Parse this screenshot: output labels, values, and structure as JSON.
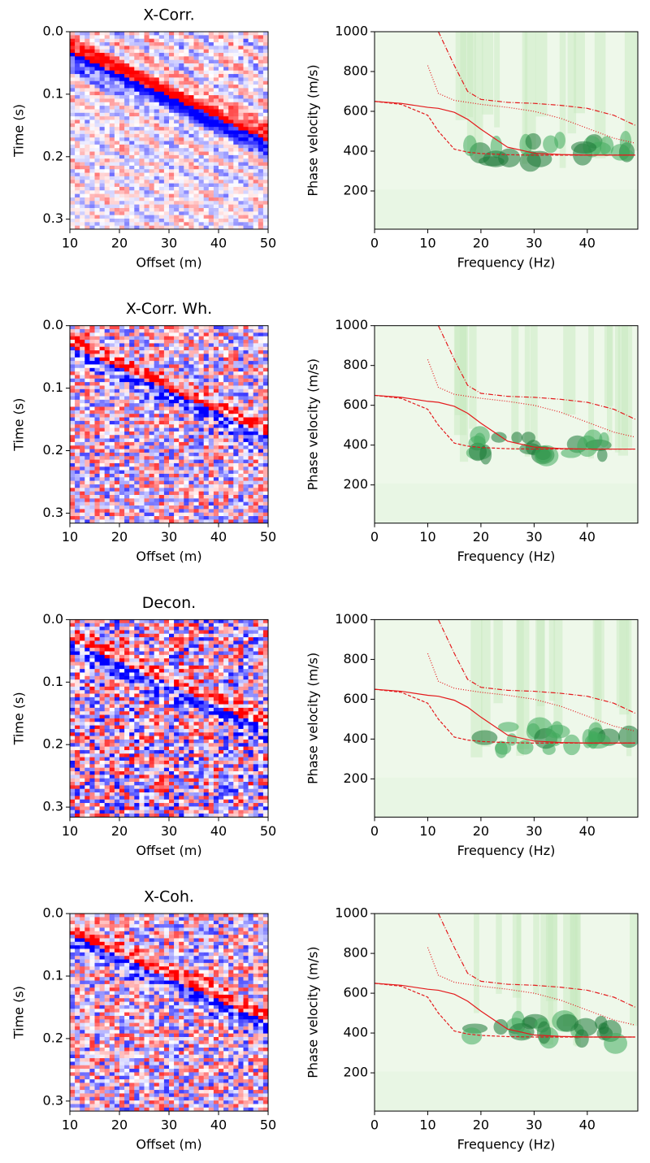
{
  "chart_data": [
    {
      "type": "heatmap",
      "title": "X-Corr.",
      "xlabel": "Offset (m)",
      "ylabel": "Time (s)",
      "xlim": [
        10,
        50
      ],
      "xticks": [
        10,
        20,
        30,
        40,
        50
      ],
      "ylim": [
        0,
        0.316
      ],
      "yticks": [
        {
          "value": 0,
          "label": "0.0"
        },
        0.1,
        0.2,
        0.3
      ],
      "y_inverted": true,
      "colormap": "bwr"
    },
    {
      "type": "line",
      "xlabel": "Frequency (Hz)",
      "ylabel": "Phase velocity (m/s)",
      "xlim": [
        0,
        49.5
      ],
      "xticks": [
        0,
        10,
        20,
        30,
        40
      ],
      "ylim": [
        8,
        1000
      ],
      "yticks": [
        200,
        400,
        600,
        800,
        1000
      ],
      "colormap": "Greens",
      "x": [
        0,
        5,
        10,
        12,
        15,
        17.5,
        20,
        25,
        30,
        35,
        40,
        45,
        49
      ],
      "series": [
        {
          "color": "#e41a1c",
          "style": "solid",
          "values": [
            650,
            640,
            620,
            615,
            595,
            560,
            510,
            420,
            390,
            383,
            380,
            380,
            380
          ]
        },
        {
          "color": "#e41a1c",
          "style": "dashed",
          "values": [
            650,
            635,
            580,
            500,
            410,
            395,
            388,
            382,
            380,
            380,
            380,
            380,
            380
          ]
        },
        {
          "color": "#e41a1c",
          "style": "dotted",
          "values": [
            null,
            null,
            830,
            690,
            655,
            645,
            635,
            620,
            600,
            565,
            515,
            465,
            440
          ]
        },
        {
          "color": "#e41a1c",
          "style": "dashdot",
          "values": [
            null,
            null,
            null,
            1000,
            830,
            700,
            660,
            645,
            640,
            630,
            615,
            580,
            530
          ]
        }
      ]
    },
    {
      "type": "heatmap",
      "title": "X-Corr. Wh.",
      "xlabel": "Offset (m)",
      "ylabel": "Time (s)",
      "xlim": [
        10,
        50
      ],
      "xticks": [
        10,
        20,
        30,
        40,
        50
      ],
      "ylim": [
        0,
        0.316
      ],
      "yticks": [
        {
          "value": 0,
          "label": "0.0"
        },
        0.1,
        0.2,
        0.3
      ],
      "y_inverted": true,
      "colormap": "bwr"
    },
    {
      "type": "line",
      "xlabel": "Frequency (Hz)",
      "ylabel": "Phase velocity (m/s)",
      "xlim": [
        0,
        49.5
      ],
      "xticks": [
        0,
        10,
        20,
        30,
        40
      ],
      "ylim": [
        8,
        1000
      ],
      "yticks": [
        200,
        400,
        600,
        800,
        1000
      ],
      "colormap": "Greens",
      "x": [
        0,
        5,
        10,
        12,
        15,
        17.5,
        20,
        25,
        30,
        35,
        40,
        45,
        49
      ],
      "series": [
        {
          "color": "#e41a1c",
          "style": "solid",
          "values": [
            650,
            640,
            620,
            615,
            595,
            560,
            510,
            420,
            390,
            383,
            380,
            380,
            380
          ]
        },
        {
          "color": "#e41a1c",
          "style": "dashed",
          "values": [
            650,
            635,
            580,
            500,
            410,
            395,
            388,
            382,
            380,
            380,
            380,
            380,
            380
          ]
        },
        {
          "color": "#e41a1c",
          "style": "dotted",
          "values": [
            null,
            null,
            830,
            690,
            655,
            645,
            635,
            620,
            600,
            565,
            515,
            465,
            440
          ]
        },
        {
          "color": "#e41a1c",
          "style": "dashdot",
          "values": [
            null,
            null,
            null,
            1000,
            830,
            700,
            660,
            645,
            640,
            630,
            615,
            580,
            530
          ]
        }
      ]
    },
    {
      "type": "heatmap",
      "title": "Decon.",
      "xlabel": "Offset (m)",
      "ylabel": "Time (s)",
      "xlim": [
        10,
        50
      ],
      "xticks": [
        10,
        20,
        30,
        40,
        50
      ],
      "ylim": [
        0,
        0.316
      ],
      "yticks": [
        {
          "value": 0,
          "label": "0.0"
        },
        0.1,
        0.2,
        0.3
      ],
      "y_inverted": true,
      "colormap": "bwr"
    },
    {
      "type": "line",
      "xlabel": "Frequency (Hz)",
      "ylabel": "Phase velocity (m/s)",
      "xlim": [
        0,
        49.5
      ],
      "xticks": [
        0,
        10,
        20,
        30,
        40
      ],
      "ylim": [
        8,
        1000
      ],
      "yticks": [
        200,
        400,
        600,
        800,
        1000
      ],
      "colormap": "Greens",
      "x": [
        0,
        5,
        10,
        12,
        15,
        17.5,
        20,
        25,
        30,
        35,
        40,
        45,
        49
      ],
      "series": [
        {
          "color": "#e41a1c",
          "style": "solid",
          "values": [
            650,
            640,
            620,
            615,
            595,
            560,
            510,
            420,
            390,
            383,
            380,
            380,
            380
          ]
        },
        {
          "color": "#e41a1c",
          "style": "dashed",
          "values": [
            650,
            635,
            580,
            500,
            410,
            395,
            388,
            382,
            380,
            380,
            380,
            380,
            380
          ]
        },
        {
          "color": "#e41a1c",
          "style": "dotted",
          "values": [
            null,
            null,
            830,
            690,
            655,
            645,
            635,
            620,
            600,
            565,
            515,
            465,
            440
          ]
        },
        {
          "color": "#e41a1c",
          "style": "dashdot",
          "values": [
            null,
            null,
            null,
            1000,
            830,
            700,
            660,
            645,
            640,
            630,
            615,
            580,
            530
          ]
        }
      ]
    },
    {
      "type": "heatmap",
      "title": "X-Coh.",
      "xlabel": "Offset (m)",
      "ylabel": "Time (s)",
      "xlim": [
        10,
        50
      ],
      "xticks": [
        10,
        20,
        30,
        40,
        50
      ],
      "ylim": [
        0,
        0.316
      ],
      "yticks": [
        {
          "value": 0,
          "label": "0.0"
        },
        0.1,
        0.2,
        0.3
      ],
      "y_inverted": true,
      "colormap": "bwr"
    },
    {
      "type": "line",
      "xlabel": "Frequency (Hz)",
      "ylabel": "Phase velocity (m/s)",
      "xlim": [
        0,
        49.5
      ],
      "xticks": [
        0,
        10,
        20,
        30,
        40
      ],
      "ylim": [
        8,
        1000
      ],
      "yticks": [
        200,
        400,
        600,
        800,
        1000
      ],
      "colormap": "Greens",
      "x": [
        0,
        5,
        10,
        12,
        15,
        17.5,
        20,
        25,
        30,
        35,
        40,
        45,
        49
      ],
      "series": [
        {
          "color": "#e41a1c",
          "style": "solid",
          "values": [
            650,
            640,
            620,
            615,
            595,
            560,
            510,
            420,
            390,
            383,
            380,
            380,
            380
          ]
        },
        {
          "color": "#e41a1c",
          "style": "dashed",
          "values": [
            650,
            635,
            580,
            500,
            410,
            395,
            388,
            382,
            380,
            380,
            380,
            380,
            380
          ]
        },
        {
          "color": "#e41a1c",
          "style": "dotted",
          "values": [
            null,
            null,
            830,
            690,
            655,
            645,
            635,
            620,
            600,
            565,
            515,
            465,
            440
          ]
        },
        {
          "color": "#e41a1c",
          "style": "dashdot",
          "values": [
            null,
            null,
            null,
            1000,
            830,
            700,
            660,
            645,
            640,
            630,
            615,
            580,
            530
          ]
        }
      ]
    }
  ]
}
